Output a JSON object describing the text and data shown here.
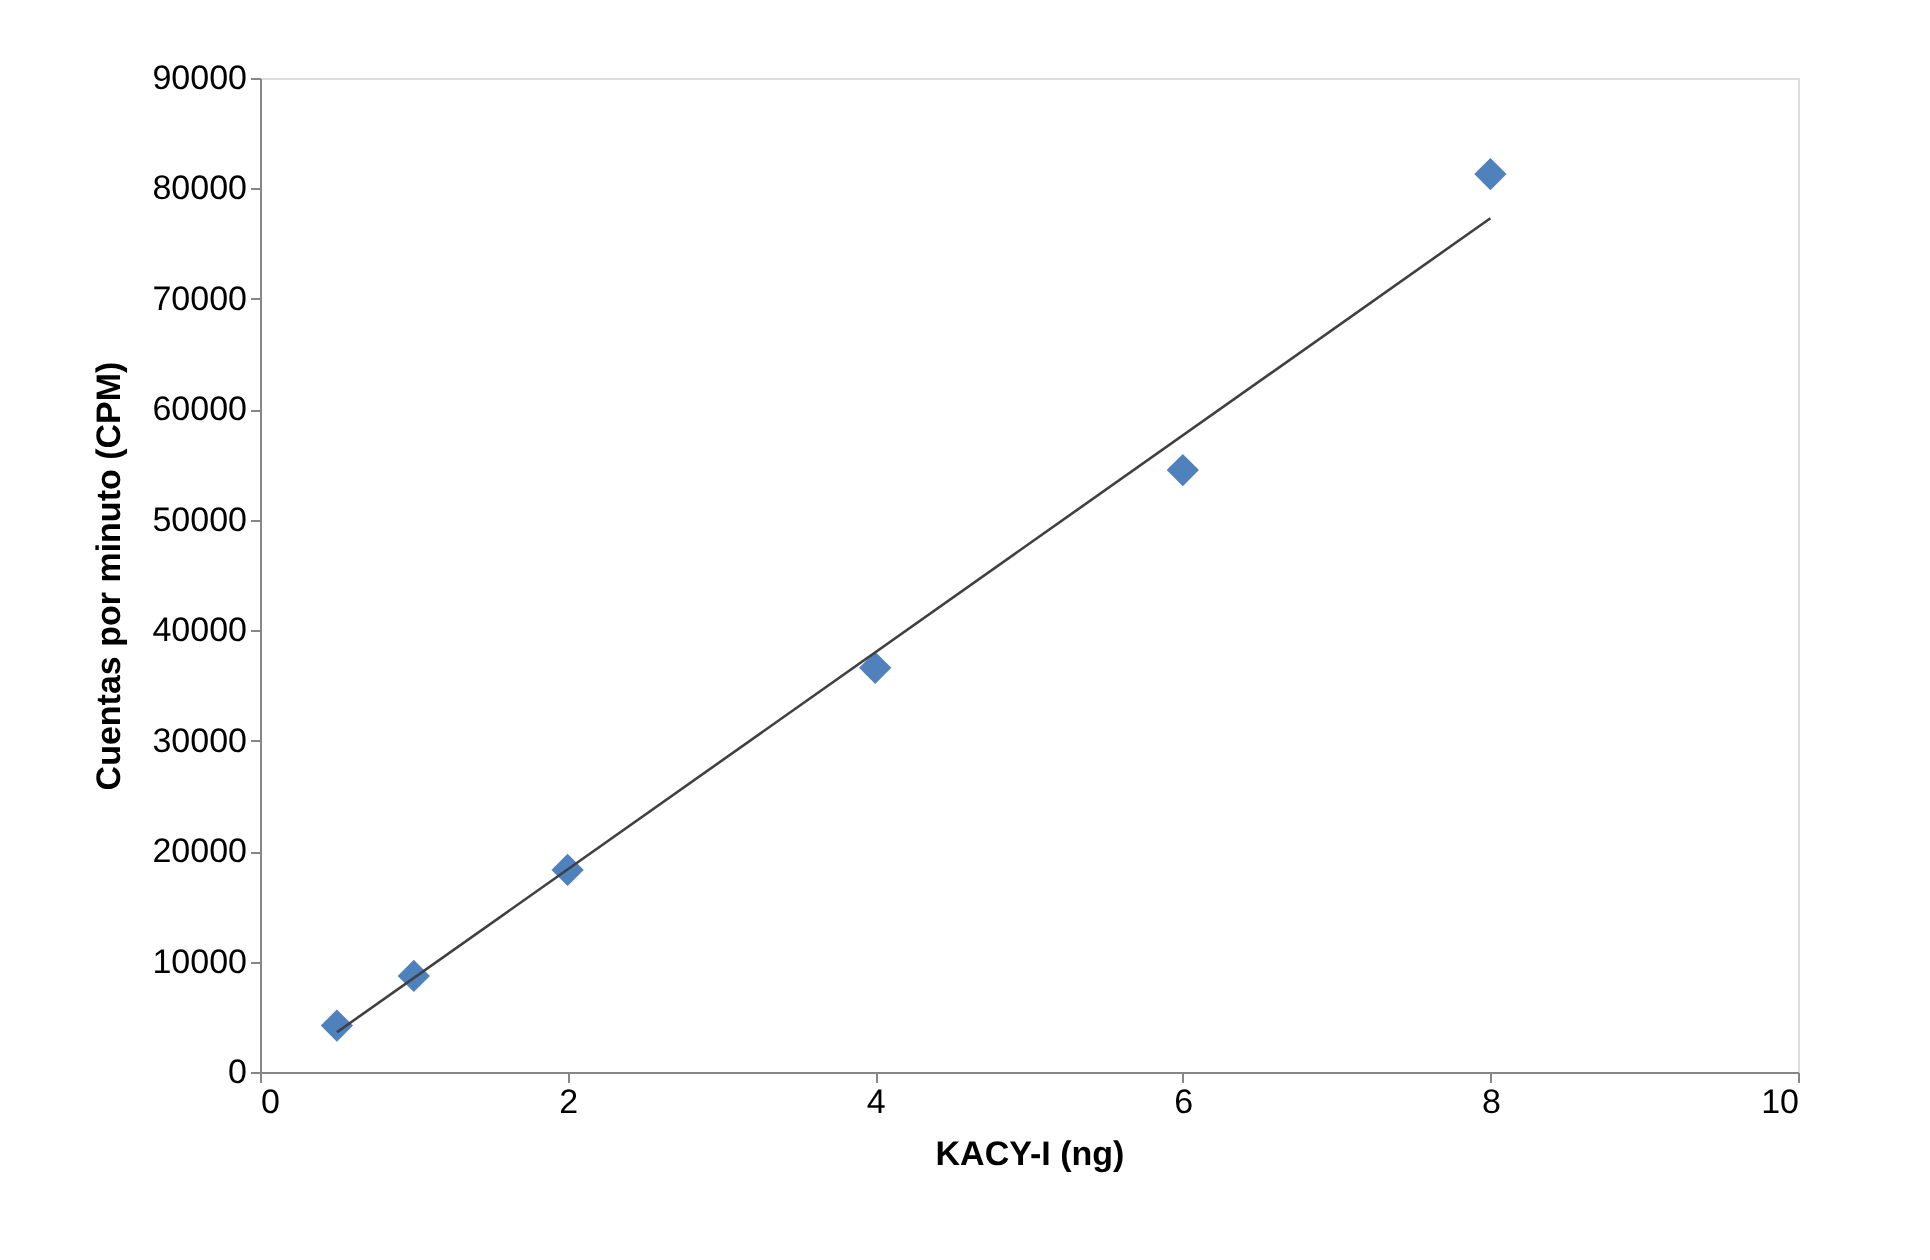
{
  "chart_data": {
    "type": "scatter",
    "xlabel": "KACY-I (ng)",
    "ylabel": "Cuentas por minuto (CPM)",
    "x": [
      0.5,
      1,
      2,
      4,
      6,
      8
    ],
    "series": [
      {
        "color": "#4f81bd",
        "marker": "diamond",
        "values": [
          4200,
          8700,
          18300,
          36600,
          54500,
          81300
        ]
      },
      {
        "type": "line",
        "color": "#404040",
        "marker": "none",
        "x": [
          0.5,
          8
        ],
        "values": [
          3600,
          77300
        ]
      }
    ],
    "xlim": [
      0,
      10
    ],
    "xticks": [
      0,
      2,
      4,
      6,
      8,
      10
    ],
    "ylim": [
      0,
      90000
    ],
    "yticks": [
      0,
      10000,
      20000,
      30000,
      40000,
      50000,
      60000,
      70000,
      80000,
      90000
    ],
    "grid": false
  }
}
